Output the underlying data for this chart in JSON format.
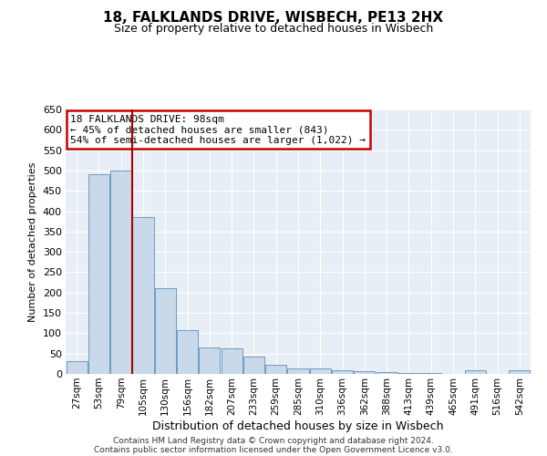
{
  "title1": "18, FALKLANDS DRIVE, WISBECH, PE13 2HX",
  "title2": "Size of property relative to detached houses in Wisbech",
  "xlabel": "Distribution of detached houses by size in Wisbech",
  "ylabel": "Number of detached properties",
  "footnote1": "Contains HM Land Registry data © Crown copyright and database right 2024.",
  "footnote2": "Contains public sector information licensed under the Open Government Licence v3.0.",
  "annotation_line1": "18 FALKLANDS DRIVE: 98sqm",
  "annotation_line2": "← 45% of detached houses are smaller (843)",
  "annotation_line3": "54% of semi-detached houses are larger (1,022) →",
  "bar_color": "#c9d9ea",
  "bar_edge_color": "#5a8fc0",
  "red_line_color": "#aa0000",
  "background_color": "#e8eef5",
  "grid_color": "#ffffff",
  "categories": [
    "27sqm",
    "53sqm",
    "79sqm",
    "105sqm",
    "130sqm",
    "156sqm",
    "182sqm",
    "207sqm",
    "233sqm",
    "259sqm",
    "285sqm",
    "310sqm",
    "336sqm",
    "362sqm",
    "388sqm",
    "413sqm",
    "439sqm",
    "465sqm",
    "491sqm",
    "516sqm",
    "542sqm"
  ],
  "values": [
    32,
    490,
    500,
    385,
    210,
    108,
    65,
    63,
    42,
    22,
    13,
    13,
    10,
    7,
    5,
    3,
    2,
    1,
    8,
    1,
    8
  ],
  "ylim": [
    0,
    650
  ],
  "yticks": [
    0,
    50,
    100,
    150,
    200,
    250,
    300,
    350,
    400,
    450,
    500,
    550,
    600,
    650
  ],
  "red_line_bar_index": 3
}
